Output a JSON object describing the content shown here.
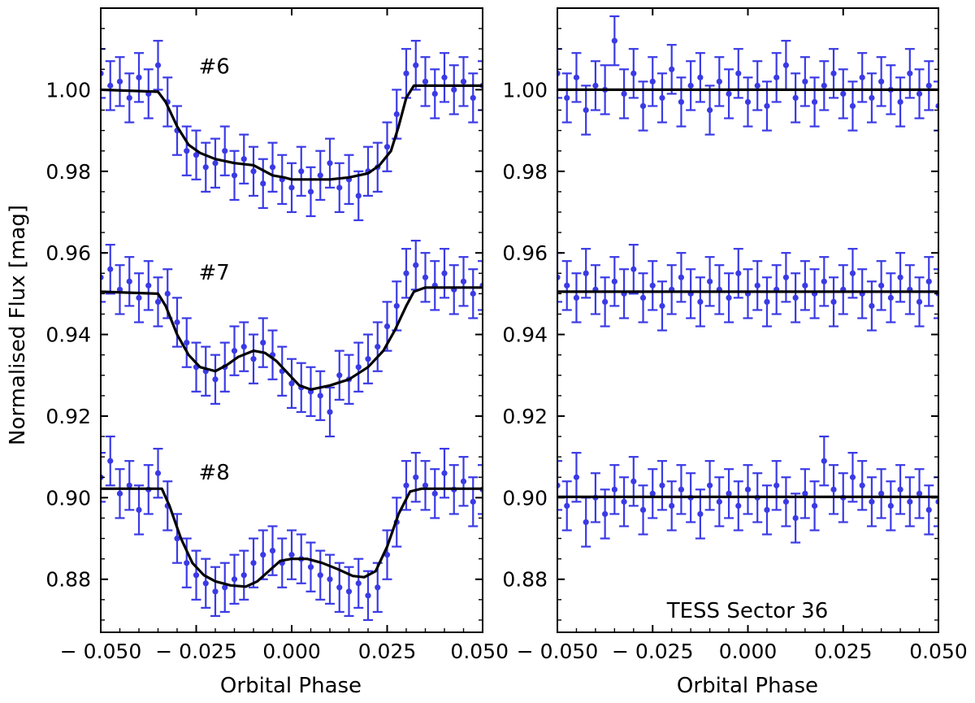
{
  "figure": {
    "ylabel": "Normalised Flux [mag]",
    "xlabel": "Orbital Phase",
    "panel_annotation": "TESS Sector 36",
    "curve_labels": [
      "#6",
      "#7",
      "#8"
    ]
  },
  "colors": {
    "data_points": "#3a3ae6",
    "model_line": "#000000"
  },
  "chart_data": [
    {
      "type": "scatter",
      "panel": "left",
      "xlabel": "Orbital Phase",
      "ylabel": "Normalised Flux [mag]",
      "xlim": [
        -0.05,
        0.05
      ],
      "ylim": [
        0.867,
        1.02
      ],
      "xticks": [
        -0.05,
        -0.025,
        0.0,
        0.025,
        0.05
      ],
      "xtick_labels": [
        "− 0.050",
        "− 0.025",
        "0.000",
        "0.025",
        "0.050"
      ],
      "yticks": [
        0.88,
        0.9,
        0.92,
        0.94,
        0.96,
        0.98,
        1.0
      ],
      "ytick_labels": [
        "0.88",
        "0.90",
        "0.92",
        "0.94",
        "0.96",
        "0.98",
        "1.00"
      ],
      "error_bar": 0.006,
      "grid": false,
      "series": [
        {
          "name": "#6",
          "label_pos": [
            -0.035,
            1.004
          ],
          "x": [
            -0.05,
            -0.0475,
            -0.045,
            -0.0425,
            -0.04,
            -0.0375,
            -0.035,
            -0.0325,
            -0.03,
            -0.0275,
            -0.025,
            -0.0225,
            -0.02,
            -0.0175,
            -0.015,
            -0.0125,
            -0.01,
            -0.0075,
            -0.005,
            -0.0025,
            0.0,
            0.0025,
            0.005,
            0.0075,
            0.01,
            0.0125,
            0.015,
            0.0175,
            0.02,
            0.0225,
            0.025,
            0.0275,
            0.03,
            0.0325,
            0.035,
            0.0375,
            0.04,
            0.0425,
            0.045,
            0.0475,
            0.05
          ],
          "y": [
            1.004,
            1.001,
            1.002,
            0.998,
            1.003,
            0.999,
            1.006,
            0.997,
            0.99,
            0.985,
            0.984,
            0.981,
            0.982,
            0.985,
            0.979,
            0.983,
            0.98,
            0.977,
            0.981,
            0.978,
            0.976,
            0.98,
            0.975,
            0.979,
            0.982,
            0.976,
            0.978,
            0.974,
            0.98,
            0.981,
            0.986,
            0.994,
            1.004,
            1.006,
            1.002,
            0.999,
            1.003,
            1.0,
            1.002,
            0.998,
            1.001
          ],
          "model_x": [
            -0.05,
            -0.035,
            -0.033,
            -0.03,
            -0.027,
            -0.024,
            -0.02,
            -0.015,
            -0.01,
            -0.008,
            -0.005,
            -0.002,
            0.0,
            0.005,
            0.01,
            0.015,
            0.02,
            0.023,
            0.026,
            0.028,
            0.03,
            0.032,
            0.035,
            0.04,
            0.05
          ],
          "model_y": [
            1.0,
            0.9995,
            0.997,
            0.991,
            0.9865,
            0.9845,
            0.983,
            0.982,
            0.9815,
            0.9805,
            0.979,
            0.9785,
            0.978,
            0.978,
            0.978,
            0.9785,
            0.9795,
            0.9815,
            0.985,
            0.991,
            0.998,
            1.001,
            1.001,
            1.001,
            1.001
          ]
        },
        {
          "name": "#7",
          "label_pos": [
            -0.035,
            0.9535
          ],
          "x": [
            -0.05,
            -0.0475,
            -0.045,
            -0.0425,
            -0.04,
            -0.0375,
            -0.035,
            -0.0325,
            -0.03,
            -0.0275,
            -0.025,
            -0.0225,
            -0.02,
            -0.0175,
            -0.015,
            -0.0125,
            -0.01,
            -0.0075,
            -0.005,
            -0.0025,
            0.0,
            0.0025,
            0.005,
            0.0075,
            0.01,
            0.0125,
            0.015,
            0.0175,
            0.02,
            0.0225,
            0.025,
            0.0275,
            0.03,
            0.0325,
            0.035,
            0.0375,
            0.04,
            0.0425,
            0.045,
            0.0475,
            0.05
          ],
          "y": [
            0.954,
            0.956,
            0.951,
            0.953,
            0.949,
            0.952,
            0.948,
            0.95,
            0.943,
            0.938,
            0.932,
            0.931,
            0.929,
            0.932,
            0.936,
            0.937,
            0.934,
            0.938,
            0.935,
            0.931,
            0.928,
            0.927,
            0.926,
            0.925,
            0.921,
            0.93,
            0.929,
            0.932,
            0.934,
            0.937,
            0.942,
            0.947,
            0.955,
            0.957,
            0.954,
            0.952,
            0.955,
            0.951,
            0.953,
            0.95,
            0.952
          ],
          "model_x": [
            -0.05,
            -0.035,
            -0.033,
            -0.03,
            -0.027,
            -0.024,
            -0.02,
            -0.017,
            -0.014,
            -0.01,
            -0.007,
            -0.004,
            -0.001,
            0.002,
            0.005,
            0.01,
            0.015,
            0.02,
            0.024,
            0.027,
            0.03,
            0.032,
            0.035,
            0.04,
            0.05
          ],
          "model_y": [
            0.9505,
            0.95,
            0.947,
            0.94,
            0.935,
            0.932,
            0.931,
            0.9325,
            0.9345,
            0.936,
            0.9355,
            0.9335,
            0.9305,
            0.9275,
            0.9265,
            0.9275,
            0.929,
            0.932,
            0.936,
            0.941,
            0.947,
            0.9505,
            0.9515,
            0.9515,
            0.9515
          ]
        },
        {
          "name": "#8",
          "label_pos": [
            -0.035,
            0.9045
          ],
          "x": [
            -0.05,
            -0.0475,
            -0.045,
            -0.0425,
            -0.04,
            -0.0375,
            -0.035,
            -0.0325,
            -0.03,
            -0.0275,
            -0.025,
            -0.0225,
            -0.02,
            -0.0175,
            -0.015,
            -0.0125,
            -0.01,
            -0.0075,
            -0.005,
            -0.0025,
            0.0,
            0.0025,
            0.005,
            0.0075,
            0.01,
            0.0125,
            0.015,
            0.0175,
            0.02,
            0.0225,
            0.025,
            0.0275,
            0.03,
            0.0325,
            0.035,
            0.0375,
            0.04,
            0.0425,
            0.045,
            0.0475,
            0.05
          ],
          "y": [
            0.905,
            0.909,
            0.901,
            0.903,
            0.897,
            0.902,
            0.906,
            0.898,
            0.89,
            0.884,
            0.881,
            0.879,
            0.877,
            0.878,
            0.88,
            0.881,
            0.884,
            0.886,
            0.887,
            0.884,
            0.886,
            0.885,
            0.883,
            0.881,
            0.88,
            0.878,
            0.877,
            0.879,
            0.876,
            0.878,
            0.886,
            0.894,
            0.903,
            0.905,
            0.903,
            0.901,
            0.906,
            0.902,
            0.904,
            0.899,
            0.902
          ],
          "model_x": [
            -0.05,
            -0.034,
            -0.032,
            -0.029,
            -0.026,
            -0.023,
            -0.02,
            -0.016,
            -0.012,
            -0.009,
            -0.006,
            -0.003,
            0.0,
            0.004,
            0.008,
            0.012,
            0.016,
            0.019,
            0.022,
            0.025,
            0.028,
            0.031,
            0.034,
            0.04,
            0.05
          ],
          "model_y": [
            0.9022,
            0.9022,
            0.898,
            0.89,
            0.884,
            0.881,
            0.8795,
            0.8785,
            0.8782,
            0.8795,
            0.882,
            0.8845,
            0.885,
            0.885,
            0.884,
            0.8825,
            0.8808,
            0.8805,
            0.882,
            0.888,
            0.896,
            0.9015,
            0.9022,
            0.9022,
            0.9022
          ]
        }
      ]
    },
    {
      "type": "scatter",
      "panel": "right",
      "xlabel": "Orbital Phase",
      "annotation": "TESS Sector 36",
      "xlim": [
        -0.05,
        0.05
      ],
      "ylim": [
        0.867,
        1.02
      ],
      "xticks": [
        -0.05,
        -0.025,
        0.0,
        0.025,
        0.05
      ],
      "xtick_labels": [
        "− 0.050",
        "− 0.025",
        "0.000",
        "0.025",
        "0.050"
      ],
      "yticks": [
        0.88,
        0.9,
        0.92,
        0.94,
        0.96,
        0.98,
        1.0
      ],
      "ytick_labels": [
        "0.88",
        "0.90",
        "0.92",
        "0.94",
        "0.96",
        "0.98",
        "1.00"
      ],
      "error_bar": 0.006,
      "grid": false,
      "series": [
        {
          "model_level": 1.0,
          "x": [
            -0.05,
            -0.0475,
            -0.045,
            -0.0425,
            -0.04,
            -0.0375,
            -0.035,
            -0.0325,
            -0.03,
            -0.0275,
            -0.025,
            -0.0225,
            -0.02,
            -0.0175,
            -0.015,
            -0.0125,
            -0.01,
            -0.0075,
            -0.005,
            -0.0025,
            0.0,
            0.0025,
            0.005,
            0.0075,
            0.01,
            0.0125,
            0.015,
            0.0175,
            0.02,
            0.0225,
            0.025,
            0.0275,
            0.03,
            0.0325,
            0.035,
            0.0375,
            0.04,
            0.0425,
            0.045,
            0.0475,
            0.05
          ],
          "y": [
            1.004,
            0.998,
            1.003,
            0.995,
            1.001,
            1.0,
            1.012,
            0.999,
            1.004,
            0.996,
            1.002,
            0.998,
            1.005,
            0.997,
            1.001,
            1.003,
            0.995,
            1.002,
            0.999,
            1.004,
            0.997,
            1.001,
            0.996,
            1.003,
            1.006,
            0.998,
            1.002,
            0.997,
            1.001,
            1.004,
            0.999,
            0.996,
            1.003,
            0.998,
            1.002,
            1.0,
            0.997,
            1.004,
            0.999,
            1.001,
            0.996
          ]
        },
        {
          "model_level": 0.9505,
          "x": [
            -0.05,
            -0.0475,
            -0.045,
            -0.0425,
            -0.04,
            -0.0375,
            -0.035,
            -0.0325,
            -0.03,
            -0.0275,
            -0.025,
            -0.0225,
            -0.02,
            -0.0175,
            -0.015,
            -0.0125,
            -0.01,
            -0.0075,
            -0.005,
            -0.0025,
            0.0,
            0.0025,
            0.005,
            0.0075,
            0.01,
            0.0125,
            0.015,
            0.0175,
            0.02,
            0.0225,
            0.025,
            0.0275,
            0.03,
            0.0325,
            0.035,
            0.0375,
            0.04,
            0.0425,
            0.045,
            0.0475,
            0.05
          ],
          "y": [
            0.954,
            0.952,
            0.949,
            0.955,
            0.951,
            0.948,
            0.953,
            0.95,
            0.956,
            0.949,
            0.952,
            0.947,
            0.951,
            0.954,
            0.95,
            0.948,
            0.953,
            0.951,
            0.949,
            0.955,
            0.95,
            0.952,
            0.948,
            0.951,
            0.954,
            0.949,
            0.952,
            0.95,
            0.953,
            0.948,
            0.951,
            0.955,
            0.95,
            0.947,
            0.952,
            0.949,
            0.954,
            0.951,
            0.948,
            0.953,
            0.95
          ]
        },
        {
          "model_level": 0.9002,
          "x": [
            -0.05,
            -0.0475,
            -0.045,
            -0.0425,
            -0.04,
            -0.0375,
            -0.035,
            -0.0325,
            -0.03,
            -0.0275,
            -0.025,
            -0.0225,
            -0.02,
            -0.0175,
            -0.015,
            -0.0125,
            -0.01,
            -0.0075,
            -0.005,
            -0.0025,
            0.0,
            0.0025,
            0.005,
            0.0075,
            0.01,
            0.0125,
            0.015,
            0.0175,
            0.02,
            0.0225,
            0.025,
            0.0275,
            0.03,
            0.0325,
            0.035,
            0.0375,
            0.04,
            0.0425,
            0.045,
            0.0475,
            0.05
          ],
          "y": [
            0.903,
            0.898,
            0.905,
            0.894,
            0.9,
            0.896,
            0.902,
            0.899,
            0.904,
            0.897,
            0.901,
            0.903,
            0.898,
            0.902,
            0.9,
            0.896,
            0.903,
            0.899,
            0.901,
            0.898,
            0.902,
            0.9,
            0.897,
            0.903,
            0.899,
            0.895,
            0.901,
            0.898,
            0.909,
            0.902,
            0.9,
            0.905,
            0.903,
            0.899,
            0.901,
            0.898,
            0.902,
            0.899,
            0.901,
            0.897,
            0.899
          ]
        }
      ]
    }
  ]
}
